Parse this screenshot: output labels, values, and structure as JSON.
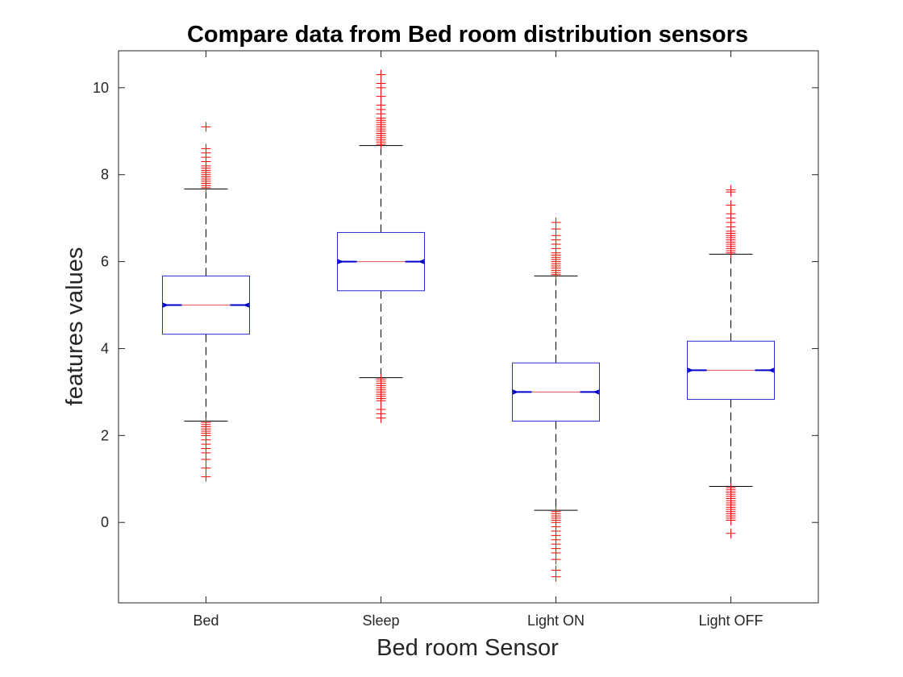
{
  "chart_data": {
    "type": "boxplot",
    "title": "Compare data from Bed room distribution sensors",
    "xlabel": "Bed room Sensor",
    "ylabel": "features values",
    "ylim": [
      -1.85,
      10.85
    ],
    "yticks": [
      0,
      2,
      4,
      6,
      8,
      10
    ],
    "grid": false,
    "notched": true,
    "colors": {
      "box": "#2b2bd6",
      "median": "#e05555",
      "median_notch": "#0000cc",
      "whisker": "#000000",
      "outlier": "#ff0000"
    },
    "categories": [
      "Bed",
      "Sleep",
      "Light ON",
      "Light OFF"
    ],
    "boxes": [
      {
        "label": "Bed",
        "q1": 4.33,
        "median": 5.0,
        "q3": 5.67,
        "whisker_low": 2.33,
        "whisker_high": 7.67,
        "outliers": [
          1.05,
          1.25,
          1.45,
          1.6,
          1.7,
          1.8,
          1.9,
          2.0,
          2.05,
          2.1,
          2.15,
          2.2,
          2.25,
          2.3,
          7.7,
          7.75,
          7.8,
          7.85,
          7.9,
          7.95,
          8.0,
          8.05,
          8.1,
          8.15,
          8.2,
          8.3,
          8.4,
          8.5,
          8.6,
          9.1
        ]
      },
      {
        "label": "Sleep",
        "q1": 5.33,
        "median": 6.0,
        "q3": 6.67,
        "whisker_low": 3.33,
        "whisker_high": 8.67,
        "outliers": [
          2.4,
          2.5,
          2.6,
          2.8,
          2.85,
          2.9,
          2.95,
          3.0,
          3.05,
          3.1,
          3.15,
          3.2,
          3.25,
          3.3,
          8.7,
          8.75,
          8.8,
          8.85,
          8.9,
          8.95,
          9.0,
          9.05,
          9.1,
          9.15,
          9.2,
          9.25,
          9.3,
          9.4,
          9.5,
          9.6,
          9.8,
          10.0,
          10.1,
          10.3
        ]
      },
      {
        "label": "Light ON",
        "q1": 2.33,
        "median": 3.0,
        "q3": 3.67,
        "whisker_low": 0.28,
        "whisker_high": 5.67,
        "outliers": [
          -1.25,
          -1.1,
          -0.85,
          -0.7,
          -0.6,
          -0.5,
          -0.4,
          -0.3,
          -0.2,
          -0.1,
          0.0,
          0.05,
          0.1,
          0.15,
          0.2,
          0.25,
          5.7,
          5.75,
          5.8,
          5.85,
          5.9,
          5.95,
          6.0,
          6.05,
          6.1,
          6.15,
          6.2,
          6.3,
          6.4,
          6.5,
          6.6,
          6.75,
          6.9
        ]
      },
      {
        "label": "Light OFF",
        "q1": 2.83,
        "median": 3.5,
        "q3": 4.17,
        "whisker_low": 0.83,
        "whisker_high": 6.17,
        "outliers": [
          -0.25,
          0.05,
          0.1,
          0.15,
          0.2,
          0.25,
          0.3,
          0.35,
          0.4,
          0.45,
          0.5,
          0.55,
          0.6,
          0.65,
          0.7,
          0.75,
          0.8,
          6.2,
          6.25,
          6.3,
          6.35,
          6.4,
          6.45,
          6.5,
          6.55,
          6.6,
          6.65,
          6.7,
          6.8,
          6.9,
          7.0,
          7.1,
          7.3,
          7.6,
          7.65
        ]
      }
    ]
  }
}
